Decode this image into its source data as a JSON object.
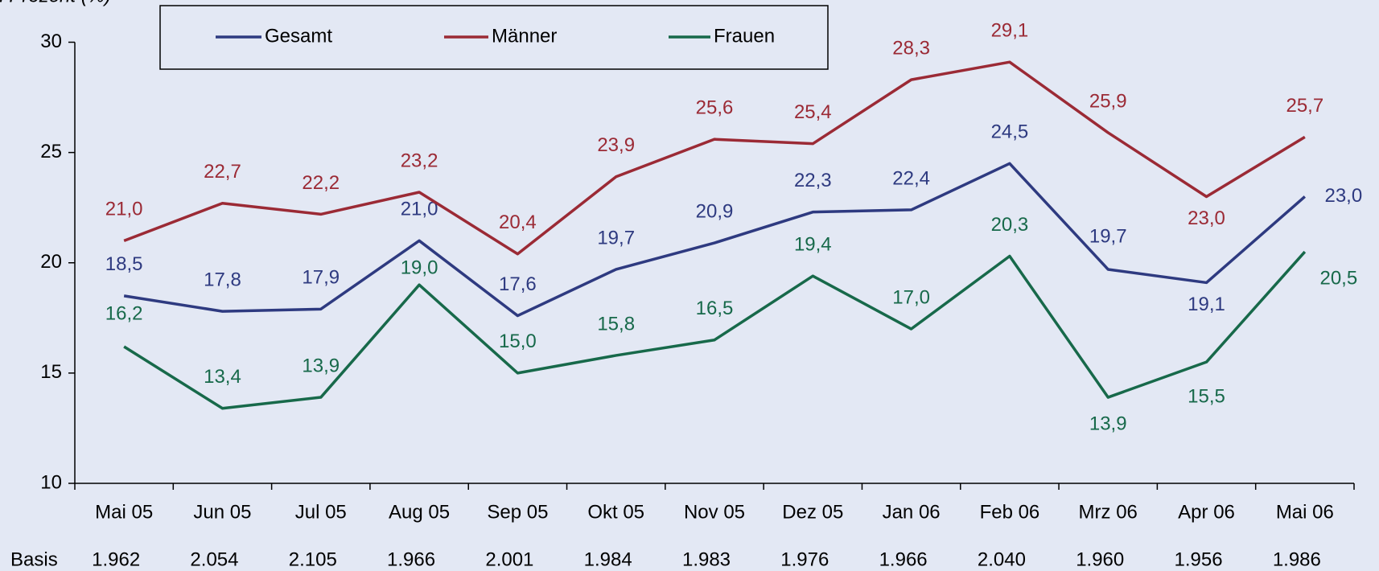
{
  "chart_data": {
    "type": "line",
    "y_label": "in Prozent (%)",
    "categories": [
      "Mai 05",
      "Jun 05",
      "Jul 05",
      "Aug 05",
      "Sep 05",
      "Okt 05",
      "Nov 05",
      "Dez 05",
      "Jan 06",
      "Feb 06",
      "Mrz 06",
      "Apr 06",
      "Mai 06"
    ],
    "series": [
      {
        "name": "Gesamt",
        "color": "#2e3a80",
        "values": [
          18.5,
          17.8,
          17.9,
          21.0,
          17.6,
          19.7,
          20.9,
          22.3,
          22.4,
          24.5,
          19.7,
          19.1,
          23.0
        ],
        "value_labels": [
          "18,5",
          "17,8",
          "17,9",
          "21,0",
          "17,6",
          "19,7",
          "20,9",
          "22,3",
          "22,4",
          "24,5",
          "19,7",
          "19,1",
          "23,0"
        ]
      },
      {
        "name": "Männer",
        "color": "#9b2a35",
        "values": [
          21.0,
          22.7,
          22.2,
          23.2,
          20.4,
          23.9,
          25.6,
          25.4,
          28.3,
          29.1,
          25.9,
          23.0,
          25.7
        ],
        "value_labels": [
          "21,0",
          "22,7",
          "22,2",
          "23,2",
          "20,4",
          "23,9",
          "25,6",
          "25,4",
          "28,3",
          "29,1",
          "25,9",
          "23,0",
          "25,7"
        ]
      },
      {
        "name": "Frauen",
        "color": "#17694a",
        "values": [
          16.2,
          13.4,
          13.9,
          19.0,
          15.0,
          15.8,
          16.5,
          19.4,
          17.0,
          20.3,
          13.9,
          15.5,
          20.5
        ],
        "value_labels": [
          "16,2",
          "13,4",
          "13,9",
          "19,0",
          "15,0",
          "15,8",
          "16,5",
          "19,4",
          "17,0",
          "20,3",
          "13,9",
          "15,5",
          "20,5"
        ]
      }
    ],
    "ylim": [
      10,
      30
    ],
    "yticks": [
      10,
      15,
      20,
      25,
      30
    ],
    "grid": false,
    "legend": "top",
    "basis": {
      "label": "Basis",
      "values": [
        "1.962",
        "2.054",
        "2.105",
        "1.966",
        "2.001",
        "1.984",
        "1.983",
        "1.976",
        "1.966",
        "2.040",
        "1.960",
        "1.956",
        "1.986"
      ]
    }
  }
}
